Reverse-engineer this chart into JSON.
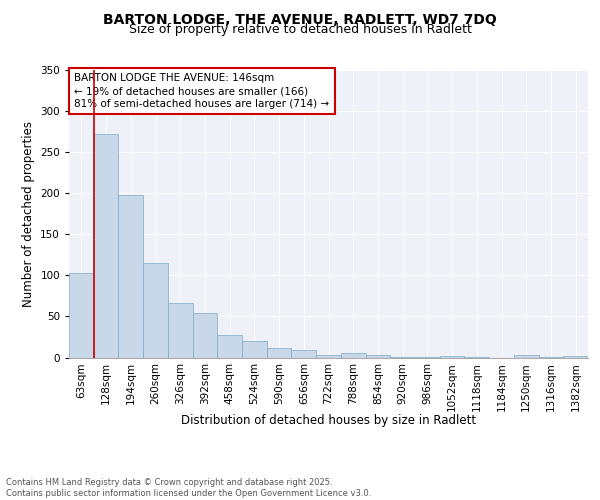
{
  "title1": "BARTON LODGE, THE AVENUE, RADLETT, WD7 7DQ",
  "title2": "Size of property relative to detached houses in Radlett",
  "xlabel": "Distribution of detached houses by size in Radlett",
  "ylabel": "Number of detached properties",
  "categories": [
    "63sqm",
    "128sqm",
    "194sqm",
    "260sqm",
    "326sqm",
    "392sqm",
    "458sqm",
    "524sqm",
    "590sqm",
    "656sqm",
    "722sqm",
    "788sqm",
    "854sqm",
    "920sqm",
    "986sqm",
    "1052sqm",
    "1118sqm",
    "1184sqm",
    "1250sqm",
    "1316sqm",
    "1382sqm"
  ],
  "values": [
    103,
    272,
    198,
    115,
    66,
    54,
    27,
    20,
    11,
    9,
    3,
    6,
    3,
    1,
    1,
    2,
    1,
    0,
    3,
    1,
    2
  ],
  "bar_color": "#c8d8e8",
  "bar_edge_color": "#7aaac8",
  "vline_color": "#cc0000",
  "vline_pos": 0.5,
  "annotation_box_text": "BARTON LODGE THE AVENUE: 146sqm\n← 19% of detached houses are smaller (166)\n81% of semi-detached houses are larger (714) →",
  "annotation_fontsize": 7.5,
  "box_edge_color": "#cc0000",
  "footnote": "Contains HM Land Registry data © Crown copyright and database right 2025.\nContains public sector information licensed under the Open Government Licence v3.0.",
  "ylim": [
    0,
    350
  ],
  "yticks": [
    0,
    50,
    100,
    150,
    200,
    250,
    300,
    350
  ],
  "background_color": "#eef2f8",
  "grid_color": "#ffffff",
  "title_fontsize": 10,
  "subtitle_fontsize": 9,
  "axis_label_fontsize": 8.5,
  "tick_fontsize": 7.5
}
